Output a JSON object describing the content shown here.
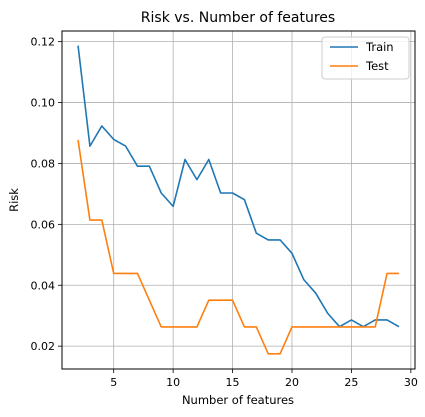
{
  "chart_data": {
    "type": "line",
    "title": "Risk vs. Number of features",
    "xlabel": "Number of features",
    "ylabel": "Risk",
    "xlim": [
      0.65,
      30.35
    ],
    "ylim": [
      0.0125,
      0.1235
    ],
    "xticks": [
      5,
      10,
      15,
      20,
      25,
      30
    ],
    "yticks": [
      0.02,
      0.04,
      0.06,
      0.08,
      0.1,
      0.12
    ],
    "xtick_labels": [
      "5",
      "10",
      "15",
      "20",
      "25",
      "30"
    ],
    "ytick_labels": [
      "0.02",
      "0.04",
      "0.06",
      "0.08",
      "0.10",
      "0.12"
    ],
    "grid": true,
    "legend_position": "top-right",
    "x": [
      2,
      3,
      4,
      5,
      6,
      7,
      8,
      9,
      10,
      11,
      12,
      13,
      14,
      15,
      16,
      17,
      18,
      19,
      20,
      21,
      22,
      23,
      24,
      25,
      26,
      27,
      28,
      29
    ],
    "series": [
      {
        "name": "Train",
        "color": "#1f77b4",
        "values": [
          0.1187,
          0.0857,
          0.0923,
          0.0879,
          0.0857,
          0.0791,
          0.0791,
          0.0703,
          0.0659,
          0.0813,
          0.0747,
          0.0813,
          0.0703,
          0.0703,
          0.0681,
          0.0571,
          0.0549,
          0.0549,
          0.0505,
          0.0418,
          0.0374,
          0.0308,
          0.0264,
          0.0286,
          0.0264,
          0.0286,
          0.0286,
          0.0264
        ]
      },
      {
        "name": "Test",
        "color": "#ff7f0e",
        "values": [
          0.0877,
          0.0614,
          0.0614,
          0.0439,
          0.0439,
          0.0439,
          0.0351,
          0.0263,
          0.0263,
          0.0263,
          0.0263,
          0.0351,
          0.0351,
          0.0351,
          0.0263,
          0.0263,
          0.0175,
          0.0175,
          0.0263,
          0.0263,
          0.0263,
          0.0263,
          0.0263,
          0.0263,
          0.0263,
          0.0263,
          0.0439,
          0.0439
        ]
      }
    ]
  }
}
